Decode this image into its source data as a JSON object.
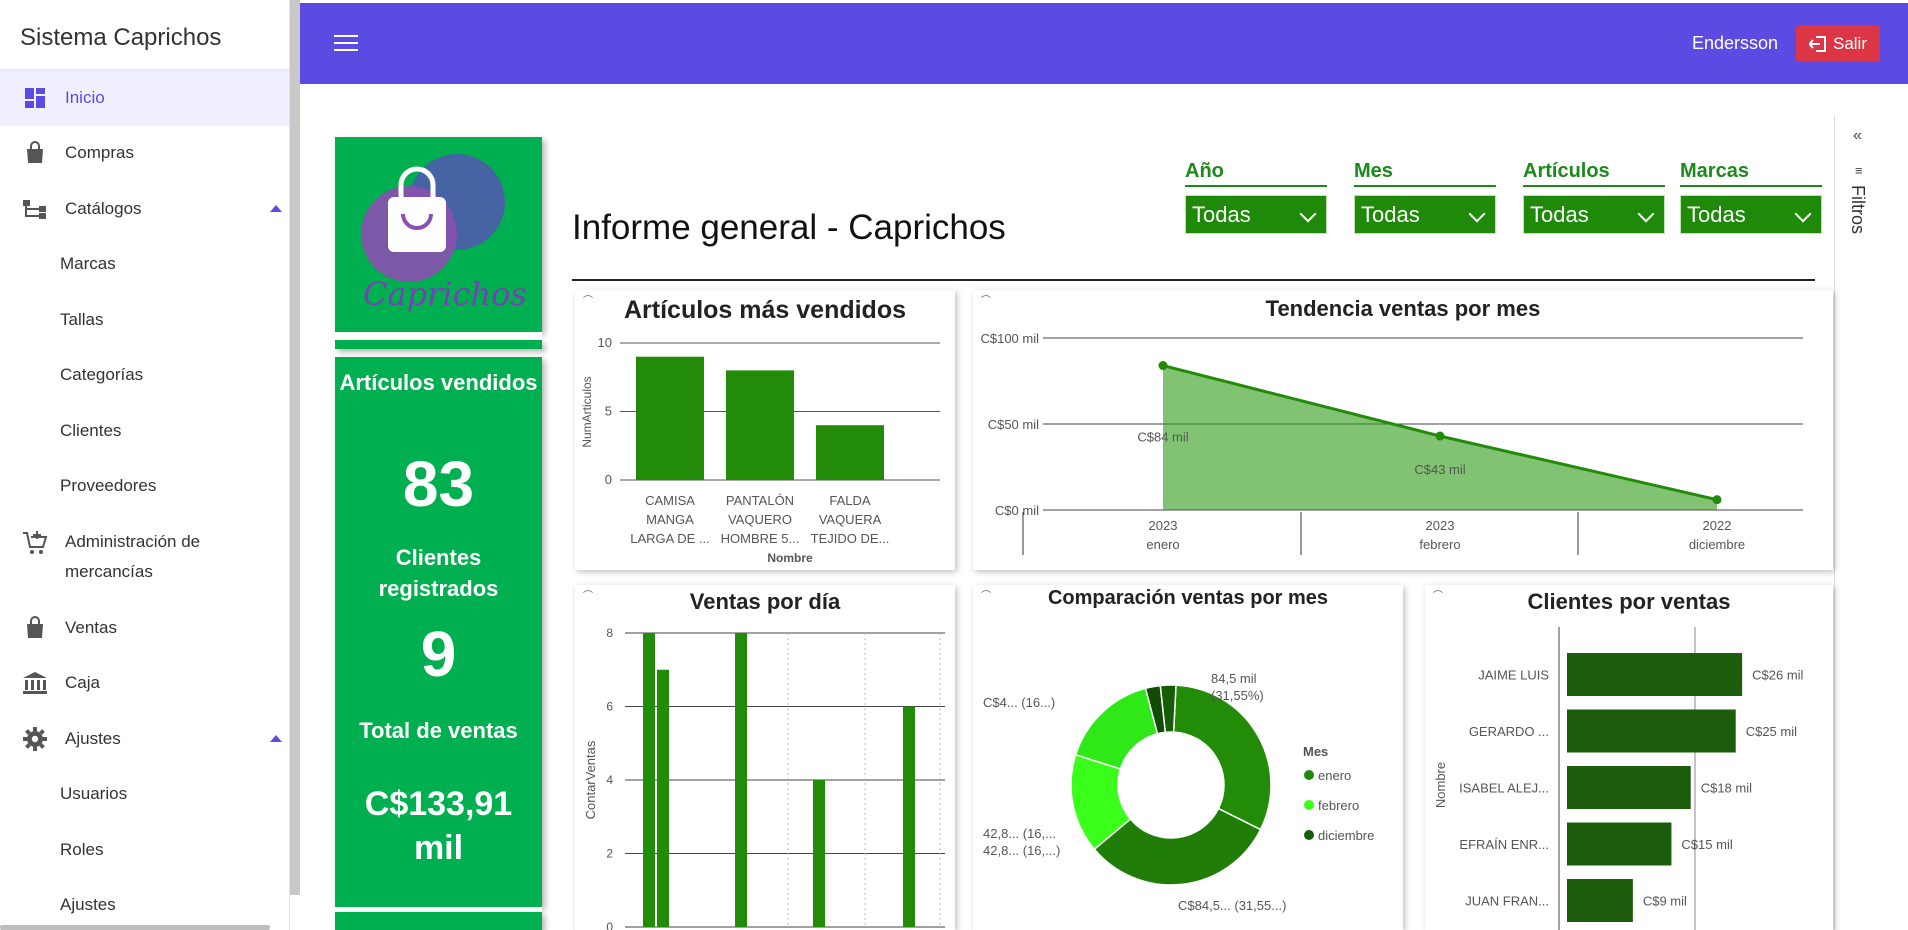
{
  "sidebar": {
    "brand": "Sistema Caprichos",
    "items": [
      {
        "label": "Inicio",
        "icon": "dashboard-icon",
        "active": true
      },
      {
        "label": "Compras",
        "icon": "bag-icon"
      },
      {
        "label": "Catálogos",
        "icon": "sitemap-icon",
        "expanded": true
      },
      {
        "label": "Marcas",
        "sub": true
      },
      {
        "label": "Tallas",
        "sub": true
      },
      {
        "label": "Categorías",
        "sub": true
      },
      {
        "label": "Clientes",
        "sub": true
      },
      {
        "label": "Proveedores",
        "sub": true
      },
      {
        "label": "Administración de mercancías",
        "icon": "cart-add-icon"
      },
      {
        "label": "Ventas",
        "icon": "bag-icon"
      },
      {
        "label": "Caja",
        "icon": "bank-icon"
      },
      {
        "label": "Ajustes",
        "icon": "gear-icon",
        "expanded": true
      },
      {
        "label": "Usuarios",
        "sub": true
      },
      {
        "label": "Roles",
        "sub": true
      },
      {
        "label": "Ajustes",
        "sub": true
      }
    ]
  },
  "topbar": {
    "user": "Endersson",
    "logout_label": "Salir",
    "color": "#5b4be3",
    "logout_color": "#dc3545"
  },
  "report": {
    "title": "Informe general - Caprichos",
    "logo_text": "Caprichos",
    "filters_label": "Filtros",
    "slicers": [
      {
        "label": "Año",
        "value": "Todas"
      },
      {
        "label": "Mes",
        "value": "Todas"
      },
      {
        "label": "Artículos",
        "value": "Todas"
      },
      {
        "label": "Marcas",
        "value": "Todas"
      }
    ],
    "kpis": {
      "articles_title": "Artículos vendidos",
      "articles_value": "83",
      "clients_title": "Clientes registrados",
      "clients_value": "9",
      "sales_title": "Total de ventas",
      "sales_value": "C$133,91 mil"
    },
    "accent_green": "#00b050",
    "chart_green": "#228b08"
  },
  "chart_data": [
    {
      "type": "bar",
      "title": "Artículos más vendidos",
      "xlabel": "Nombre",
      "ylabel": "NumArticulos",
      "categories": [
        "CAMISA MANGA LARGA DE ...",
        "PANTALÓN VAQUERO HOMBRE 5...",
        "FALDA VAQUERA TEJIDO DE..."
      ],
      "values": [
        9,
        8,
        4
      ],
      "ylim": [
        0,
        10
      ],
      "yticks": [
        0,
        5,
        10
      ]
    },
    {
      "type": "area",
      "title": "Tendencia ventas por mes",
      "categories": [
        {
          "year": "2023",
          "month": "enero"
        },
        {
          "year": "2023",
          "month": "febrero"
        },
        {
          "year": "2022",
          "month": "diciembre"
        }
      ],
      "values": [
        84,
        43,
        6
      ],
      "data_labels": [
        "C$84 mil",
        "C$43 mil",
        ""
      ],
      "ylim": [
        0,
        100
      ],
      "yticks": [
        "C$0 mil",
        "C$50 mil",
        "C$100 mil"
      ]
    },
    {
      "type": "bar",
      "title": "Ventas por día",
      "ylabel": "ContarVentas",
      "ylim": [
        0,
        8
      ],
      "yticks": [
        0,
        2,
        4,
        6,
        8
      ],
      "values": [
        8,
        7,
        8,
        4,
        6
      ]
    },
    {
      "type": "pie",
      "title": "Comparación ventas por mes",
      "legend_title": "Mes",
      "legend_position": "right",
      "slices": [
        {
          "name": "enero",
          "value": 31.55,
          "label": "84,5 mil (31,55%)",
          "color": "#228b08"
        },
        {
          "name": "enero",
          "value": 31.55,
          "label": "C$84,5... (31,55...)",
          "color": "#1f7d08"
        },
        {
          "name": "febrero",
          "value": 16,
          "label": "42,8... (16,...)",
          "color": "#39ff1a"
        },
        {
          "name": "febrero",
          "value": 16,
          "label": "C$4... (16...)",
          "color": "#2fe817"
        },
        {
          "name": "diciembre",
          "value": 2.4,
          "label": "",
          "color": "#0f4d06"
        },
        {
          "name": "diciembre",
          "value": 2.5,
          "label": "",
          "color": "#145e08"
        }
      ],
      "legend": [
        {
          "name": "enero",
          "color": "#1f8a0a"
        },
        {
          "name": "febrero",
          "color": "#39ff1a"
        },
        {
          "name": "diciembre",
          "color": "#145e08"
        }
      ]
    },
    {
      "type": "bar",
      "orientation": "horizontal",
      "title": "Clientes por ventas",
      "ylabel": "Nombre",
      "categories": [
        "JAIME LUIS",
        "GERARDO ...",
        "ISABEL ALEJ...",
        "EFRAÍN ENR...",
        "JUAN FRAN..."
      ],
      "values": [
        26,
        25,
        18,
        15,
        9
      ],
      "data_labels": [
        "C$26 mil",
        "C$25 mil",
        "C$18 mil",
        "C$15 mil",
        "C$9 mil"
      ],
      "color": "#1d5c0a"
    }
  ]
}
